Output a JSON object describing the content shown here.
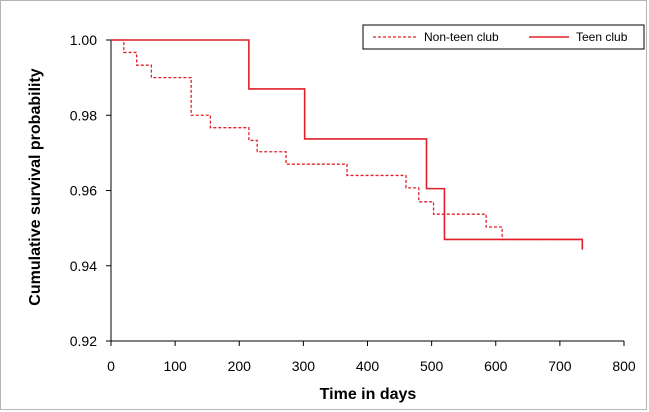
{
  "chart_data": {
    "type": "line",
    "subtype": "kaplan-meier step",
    "title": "",
    "xlabel": "Time in days",
    "ylabel": "Cumulative survival probability",
    "xlim": [
      0,
      800
    ],
    "ylim": [
      0.92,
      1.0
    ],
    "x_ticks": [
      "0",
      "100",
      "200",
      "300",
      "400",
      "500",
      "600",
      "700",
      "800"
    ],
    "y_ticks": [
      "0.92",
      "0.94",
      "0.96",
      "0.98",
      "1.00"
    ],
    "grid": false,
    "legend_position": "top-right",
    "series": [
      {
        "name": "Non-teen club",
        "color": "#e0202a",
        "line_style": "dashed",
        "points": [
          [
            0,
            1.0
          ],
          [
            20,
            0.9967
          ],
          [
            40,
            0.9933
          ],
          [
            63,
            0.99
          ],
          [
            125,
            0.98
          ],
          [
            155,
            0.9767
          ],
          [
            215,
            0.9733
          ],
          [
            228,
            0.9703
          ],
          [
            273,
            0.967
          ],
          [
            368,
            0.964
          ],
          [
            460,
            0.9607
          ],
          [
            480,
            0.957
          ],
          [
            503,
            0.9537
          ],
          [
            585,
            0.9503
          ],
          [
            610,
            0.947
          ],
          [
            735,
            0.947
          ]
        ],
        "end_drop": 0.9443
      },
      {
        "name": "Teen club",
        "color": "#e0202a",
        "line_style": "solid",
        "points": [
          [
            0,
            1.0
          ],
          [
            215,
            0.987
          ],
          [
            302,
            0.9737
          ],
          [
            492,
            0.9605
          ],
          [
            520,
            0.947
          ],
          [
            735,
            0.947
          ]
        ],
        "end_drop": 0.9443
      }
    ]
  }
}
